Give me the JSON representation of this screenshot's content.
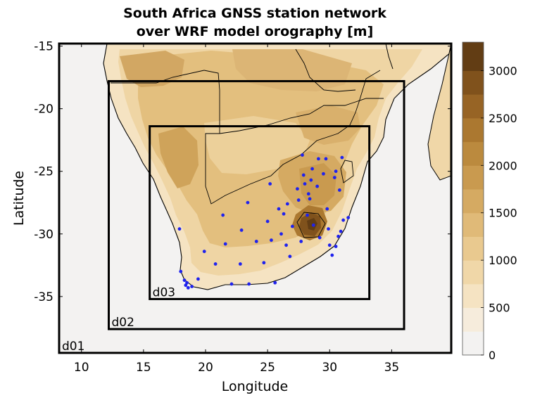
{
  "chart_data": {
    "type": "map",
    "title_lines": [
      "South Africa GNSS station network",
      "over WRF model orography [m]"
    ],
    "xlabel": "Longitude",
    "ylabel": "Latitude",
    "xlim": [
      8.2,
      39.8
    ],
    "ylim": [
      -39.5,
      -14.8
    ],
    "xticks": [
      10,
      15,
      20,
      25,
      30,
      35
    ],
    "yticks": [
      -15,
      -20,
      -25,
      -30,
      -35
    ],
    "colorbar": {
      "min": 0,
      "max": 3300,
      "ticks": [
        0,
        500,
        1000,
        1500,
        2000,
        2500,
        3000
      ],
      "levels": [
        {
          "from": 0,
          "to": 250,
          "color": "#f3f2f1"
        },
        {
          "from": 250,
          "to": 500,
          "color": "#f6ecdc"
        },
        {
          "from": 500,
          "to": 750,
          "color": "#f5e3c2"
        },
        {
          "from": 750,
          "to": 1000,
          "color": "#f0d7a8"
        },
        {
          "from": 1000,
          "to": 1250,
          "color": "#e9c98f"
        },
        {
          "from": 1250,
          "to": 1500,
          "color": "#e0ba78"
        },
        {
          "from": 1500,
          "to": 1750,
          "color": "#d5aa62"
        },
        {
          "from": 1750,
          "to": 2000,
          "color": "#c99a4f"
        },
        {
          "from": 2000,
          "to": 2250,
          "color": "#bb8a3e"
        },
        {
          "from": 2250,
          "to": 2500,
          "color": "#ab7830"
        },
        {
          "from": 2500,
          "to": 2750,
          "color": "#976425"
        },
        {
          "from": 2750,
          "to": 3000,
          "color": "#80521c"
        },
        {
          "from": 3000,
          "to": 3300,
          "color": "#623d14"
        }
      ]
    },
    "domains": [
      {
        "name": "d01",
        "lon": [
          8.2,
          39.8
        ],
        "lat": [
          -39.5,
          -14.8
        ]
      },
      {
        "name": "d02",
        "lon": [
          12.2,
          36.0
        ],
        "lat": [
          -37.6,
          -17.8
        ]
      },
      {
        "name": "d03",
        "lon": [
          15.5,
          33.2
        ],
        "lat": [
          -35.2,
          -21.4
        ]
      }
    ],
    "stations": [
      [
        17.9,
        -29.6
      ],
      [
        18.0,
        -33.0
      ],
      [
        18.3,
        -33.7
      ],
      [
        18.4,
        -34.1
      ],
      [
        18.5,
        -33.9
      ],
      [
        18.6,
        -34.3
      ],
      [
        18.9,
        -34.2
      ],
      [
        19.4,
        -33.6
      ],
      [
        19.9,
        -31.4
      ],
      [
        20.8,
        -32.4
      ],
      [
        21.4,
        -28.5
      ],
      [
        21.6,
        -30.8
      ],
      [
        22.1,
        -34.0
      ],
      [
        22.8,
        -32.4
      ],
      [
        22.9,
        -29.7
      ],
      [
        23.4,
        -27.5
      ],
      [
        23.5,
        -34.0
      ],
      [
        24.1,
        -30.6
      ],
      [
        24.7,
        -32.3
      ],
      [
        25.0,
        -29.0
      ],
      [
        25.2,
        -26.0
      ],
      [
        25.3,
        -30.5
      ],
      [
        25.6,
        -33.9
      ],
      [
        25.9,
        -28.0
      ],
      [
        26.1,
        -30.0
      ],
      [
        26.3,
        -28.4
      ],
      [
        26.5,
        -30.9
      ],
      [
        26.6,
        -27.6
      ],
      [
        26.8,
        -31.8
      ],
      [
        27.0,
        -29.4
      ],
      [
        27.4,
        -26.4
      ],
      [
        27.5,
        -27.3
      ],
      [
        27.7,
        -30.6
      ],
      [
        27.8,
        -23.7
      ],
      [
        27.9,
        -25.3
      ],
      [
        28.0,
        -26.0
      ],
      [
        28.2,
        -28.5
      ],
      [
        28.3,
        -26.8
      ],
      [
        28.4,
        -27.2
      ],
      [
        28.5,
        -25.7
      ],
      [
        28.6,
        -24.8
      ],
      [
        28.7,
        -29.3
      ],
      [
        29.0,
        -26.2
      ],
      [
        29.1,
        -24.0
      ],
      [
        29.2,
        -30.3
      ],
      [
        29.5,
        -25.2
      ],
      [
        29.7,
        -24.0
      ],
      [
        29.8,
        -28.0
      ],
      [
        29.9,
        -29.6
      ],
      [
        30.0,
        -30.9
      ],
      [
        30.2,
        -31.7
      ],
      [
        30.4,
        -25.5
      ],
      [
        30.5,
        -25.0
      ],
      [
        30.5,
        -31.0
      ],
      [
        30.7,
        -30.2
      ],
      [
        30.8,
        -26.5
      ],
      [
        30.9,
        -29.8
      ],
      [
        31.0,
        -23.9
      ],
      [
        31.1,
        -28.9
      ],
      [
        31.5,
        -28.7
      ]
    ]
  }
}
